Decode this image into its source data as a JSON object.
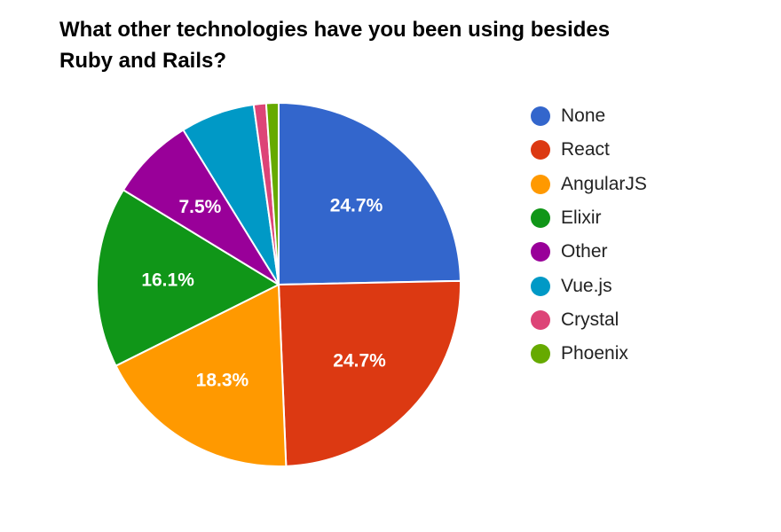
{
  "chart_data": {
    "type": "pie",
    "title": "What other technologies have you been using besides\nRuby and Rails?",
    "slices": [
      {
        "name": "None",
        "value": 24.7,
        "label": "24.7%",
        "color": "#3366cc"
      },
      {
        "name": "React",
        "value": 24.7,
        "label": "24.7%",
        "color": "#dc3912"
      },
      {
        "name": "AngularJS",
        "value": 18.3,
        "label": "18.3%",
        "color": "#ff9900"
      },
      {
        "name": "Elixir",
        "value": 16.1,
        "label": "16.1%",
        "color": "#109618"
      },
      {
        "name": "Other",
        "value": 7.5,
        "label": "7.5%",
        "color": "#990099"
      },
      {
        "name": "Vue.js",
        "value": 6.6,
        "label": "",
        "color": "#0099c6"
      },
      {
        "name": "Crystal",
        "value": 1.1,
        "label": "",
        "color": "#dd4477"
      },
      {
        "name": "Phoenix",
        "value": 1.1,
        "label": "",
        "color": "#66aa00"
      }
    ],
    "legend_position": "right"
  }
}
